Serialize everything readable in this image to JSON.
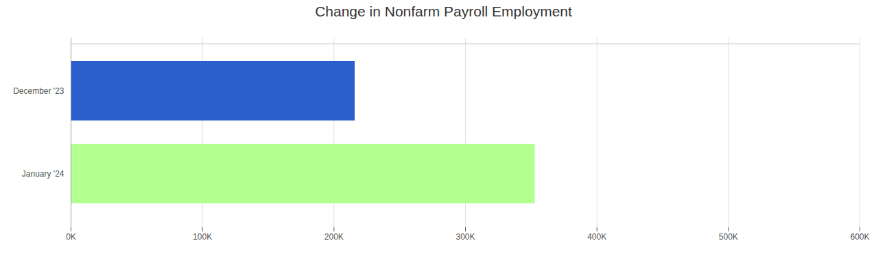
{
  "chart_data": {
    "type": "bar",
    "title": "Change in Nonfarm Payroll Employment",
    "orientation": "horizontal",
    "categories": [
      "December '23",
      "January '24"
    ],
    "values": [
      216000,
      353000
    ],
    "colors": [
      "#2b5fcc",
      "#b3ff8f"
    ],
    "xlim": [
      0,
      600000
    ],
    "xticks": [
      {
        "value": 0,
        "label": "0K"
      },
      {
        "value": 100000,
        "label": "100K"
      },
      {
        "value": 200000,
        "label": "200K"
      },
      {
        "value": 300000,
        "label": "300K"
      },
      {
        "value": 400000,
        "label": "400K"
      },
      {
        "value": 500000,
        "label": "500K"
      },
      {
        "value": 600000,
        "label": "600K"
      }
    ],
    "grid": true
  }
}
